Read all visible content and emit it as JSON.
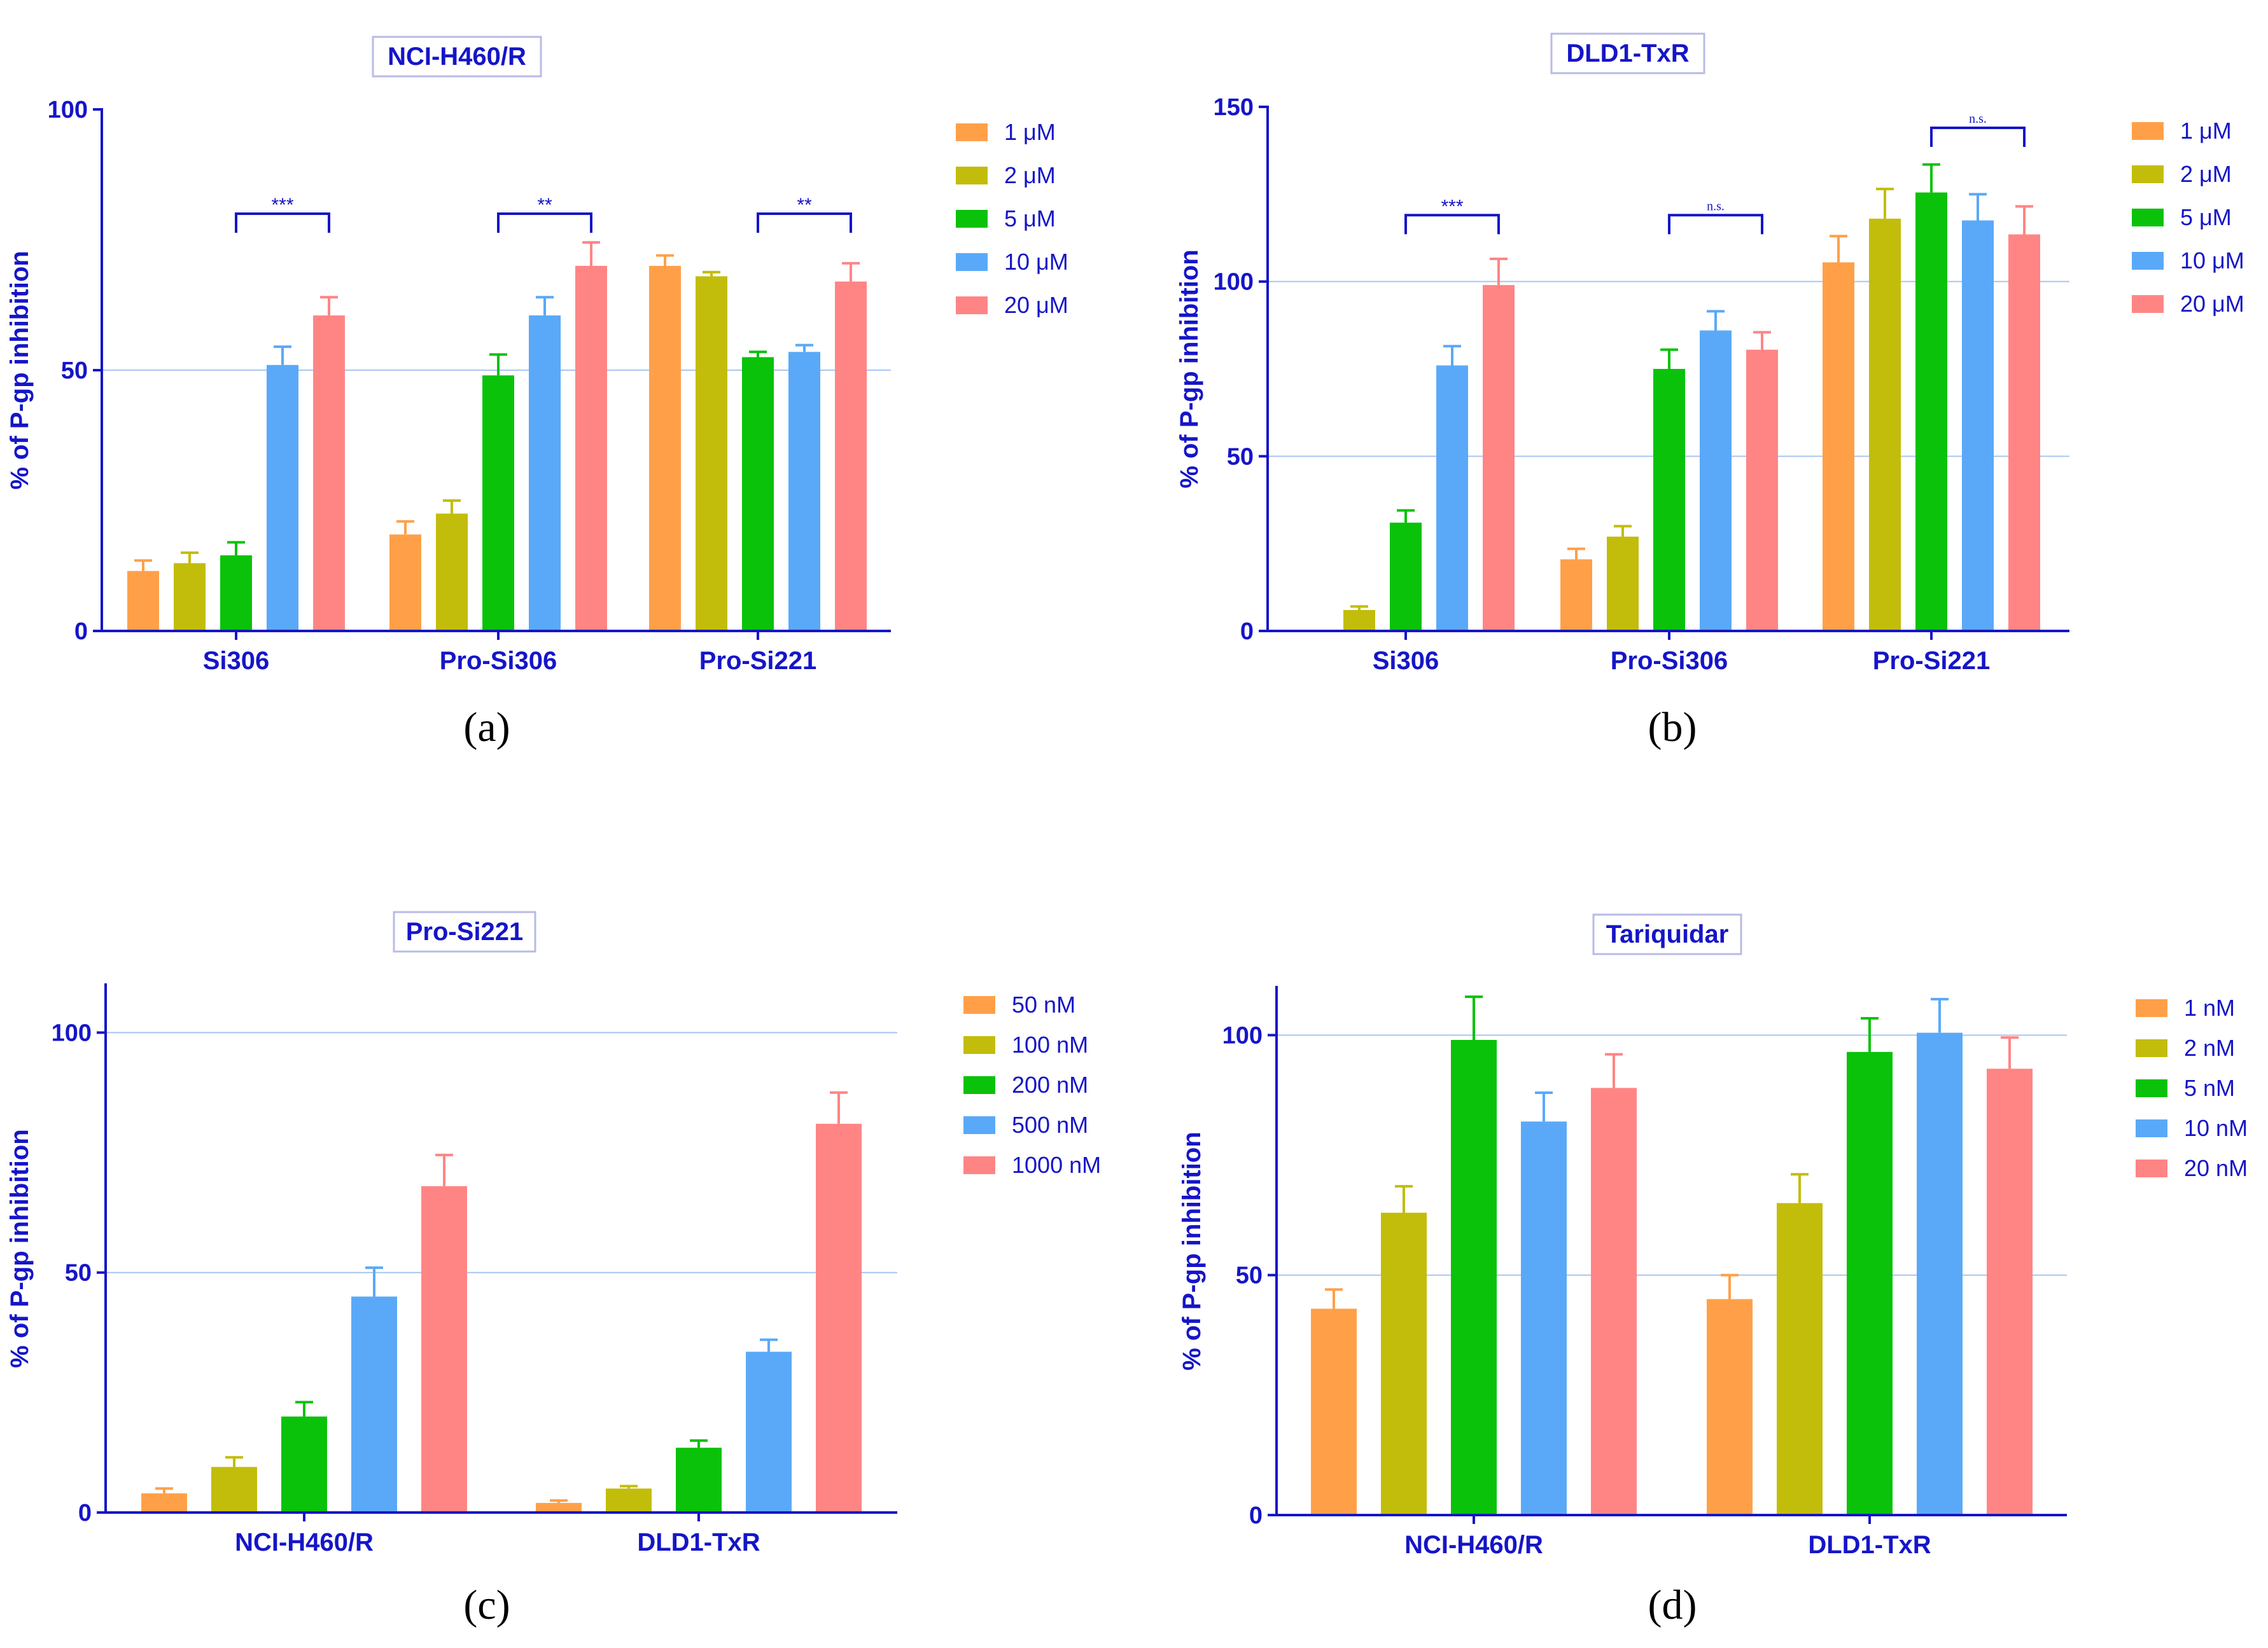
{
  "colors": {
    "axis": "#1515c8",
    "grid": "#a9c6ef",
    "title_border": "#b8bbe6"
  },
  "chart_data": [
    {
      "type": "bar",
      "panel_label": "(a)",
      "title": "NCI-H460/R",
      "xlabel": "",
      "ylabel": "% of P-gp inhibition",
      "ylim": [
        0,
        100
      ],
      "yticks": [
        "0",
        "50",
        "100"
      ],
      "gridlines": [
        50
      ],
      "categories": [
        "Si306",
        "Pro-Si306",
        "Pro-Si221"
      ],
      "series": [
        {
          "name": "1 μM",
          "color": "#ffa049",
          "values": [
            11.5,
            18.5,
            70
          ],
          "errors": [
            2,
            2.5,
            2
          ]
        },
        {
          "name": "2 μM",
          "color": "#c2bd0b",
          "values": [
            13,
            22.5,
            68
          ],
          "errors": [
            2,
            2.5,
            0.8
          ]
        },
        {
          "name": "5 μM",
          "color": "#0ac20a",
          "values": [
            14.5,
            49,
            52.5
          ],
          "errors": [
            2.5,
            4,
            1
          ]
        },
        {
          "name": "10 μM",
          "color": "#5aa9f8",
          "values": [
            51,
            60.5,
            53.5
          ],
          "errors": [
            3.5,
            3.5,
            1.3
          ]
        },
        {
          "name": "20 μM",
          "color": "#ff8585",
          "values": [
            60.5,
            70,
            67
          ],
          "errors": [
            3.5,
            4.5,
            3.5
          ]
        }
      ],
      "annotations": [
        {
          "category": 0,
          "from": "5 μM",
          "to": "20 μM",
          "y": 80,
          "label": "***"
        },
        {
          "category": 1,
          "from": "5 μM",
          "to": "20 μM",
          "y": 80,
          "label": "**"
        },
        {
          "category": 2,
          "from": "5 μM",
          "to": "20 μM",
          "y": 80,
          "label": "**"
        }
      ]
    },
    {
      "type": "bar",
      "panel_label": "(b)",
      "title": "DLD1-TxR",
      "xlabel": "",
      "ylabel": "% of P-gp inhibition",
      "ylim": [
        0,
        150
      ],
      "yticks": [
        "0",
        "50",
        "100",
        "150"
      ],
      "gridlines": [
        50,
        100
      ],
      "categories": [
        "Si306",
        "Pro-Si306",
        "Pro-Si221"
      ],
      "series": [
        {
          "name": "1 μM",
          "color": "#ffa049",
          "values": [
            0,
            20.5,
            105.5
          ],
          "errors": [
            0,
            3,
            7.5
          ]
        },
        {
          "name": "2 μM",
          "color": "#c2bd0b",
          "values": [
            6,
            27,
            118
          ],
          "errors": [
            1,
            3,
            8.5
          ]
        },
        {
          "name": "5 μM",
          "color": "#0ac20a",
          "values": [
            31,
            75,
            125.5
          ],
          "errors": [
            3.5,
            5.5,
            8
          ]
        },
        {
          "name": "10 μM",
          "color": "#5aa9f8",
          "values": [
            76,
            86,
            117.5
          ],
          "errors": [
            5.5,
            5.5,
            7.5
          ]
        },
        {
          "name": "20 μM",
          "color": "#ff8585",
          "values": [
            99,
            80.5,
            113.5
          ],
          "errors": [
            7.5,
            5,
            8
          ]
        }
      ],
      "annotations": [
        {
          "category": 0,
          "from": "5 μM",
          "to": "20 μM",
          "y": 119,
          "label": "***"
        },
        {
          "category": 1,
          "from": "5 μM",
          "to": "20 μM",
          "y": 119,
          "label": "n.s."
        },
        {
          "category": 2,
          "from": "5 μM",
          "to": "20 μM",
          "y": 144,
          "label": "n.s."
        }
      ]
    },
    {
      "type": "bar",
      "panel_label": "(c)",
      "title": "Pro-Si221",
      "xlabel": "",
      "ylabel": "% of P-gp inhibition",
      "ylim": [
        0,
        110
      ],
      "yticks": [
        "0",
        "50",
        "100"
      ],
      "gridlines": [
        50,
        100
      ],
      "categories": [
        "NCI-H460/R",
        "DLD1-TxR"
      ],
      "series": [
        {
          "name": "50 nM",
          "color": "#ffa049",
          "values": [
            4,
            2
          ],
          "errors": [
            1,
            0.5
          ]
        },
        {
          "name": "100 nM",
          "color": "#c2bd0b",
          "values": [
            9.5,
            5
          ],
          "errors": [
            2,
            0.5
          ]
        },
        {
          "name": "200 nM",
          "color": "#0ac20a",
          "values": [
            20,
            13.5
          ],
          "errors": [
            3,
            1.5
          ]
        },
        {
          "name": "500 nM",
          "color": "#5aa9f8",
          "values": [
            45,
            33.5
          ],
          "errors": [
            6,
            2.5
          ]
        },
        {
          "name": "1000 nM",
          "color": "#ff8585",
          "values": [
            68,
            81
          ],
          "errors": [
            6.5,
            6.5
          ]
        }
      ],
      "annotations": []
    },
    {
      "type": "bar",
      "panel_label": "(d)",
      "title": "Tariquidar",
      "xlabel": "",
      "ylabel": "% of P-gp inhibition",
      "ylim": [
        0,
        110
      ],
      "yticks": [
        "0",
        "50",
        "100"
      ],
      "gridlines": [
        50,
        100
      ],
      "categories": [
        "NCI-H460/R",
        "DLD1-TxR"
      ],
      "series": [
        {
          "name": "1 nM",
          "color": "#ffa049",
          "values": [
            43,
            45
          ],
          "errors": [
            4,
            5
          ]
        },
        {
          "name": "2 nM",
          "color": "#c2bd0b",
          "values": [
            63,
            65
          ],
          "errors": [
            5.5,
            6
          ]
        },
        {
          "name": "5 nM",
          "color": "#0ac20a",
          "values": [
            99,
            96.5
          ],
          "errors": [
            9,
            7
          ]
        },
        {
          "name": "10 nM",
          "color": "#5aa9f8",
          "values": [
            82,
            100.5
          ],
          "errors": [
            6,
            7
          ]
        },
        {
          "name": "20 nM",
          "color": "#ff8585",
          "values": [
            89,
            93
          ],
          "errors": [
            7,
            6.5
          ]
        }
      ],
      "annotations": []
    }
  ]
}
